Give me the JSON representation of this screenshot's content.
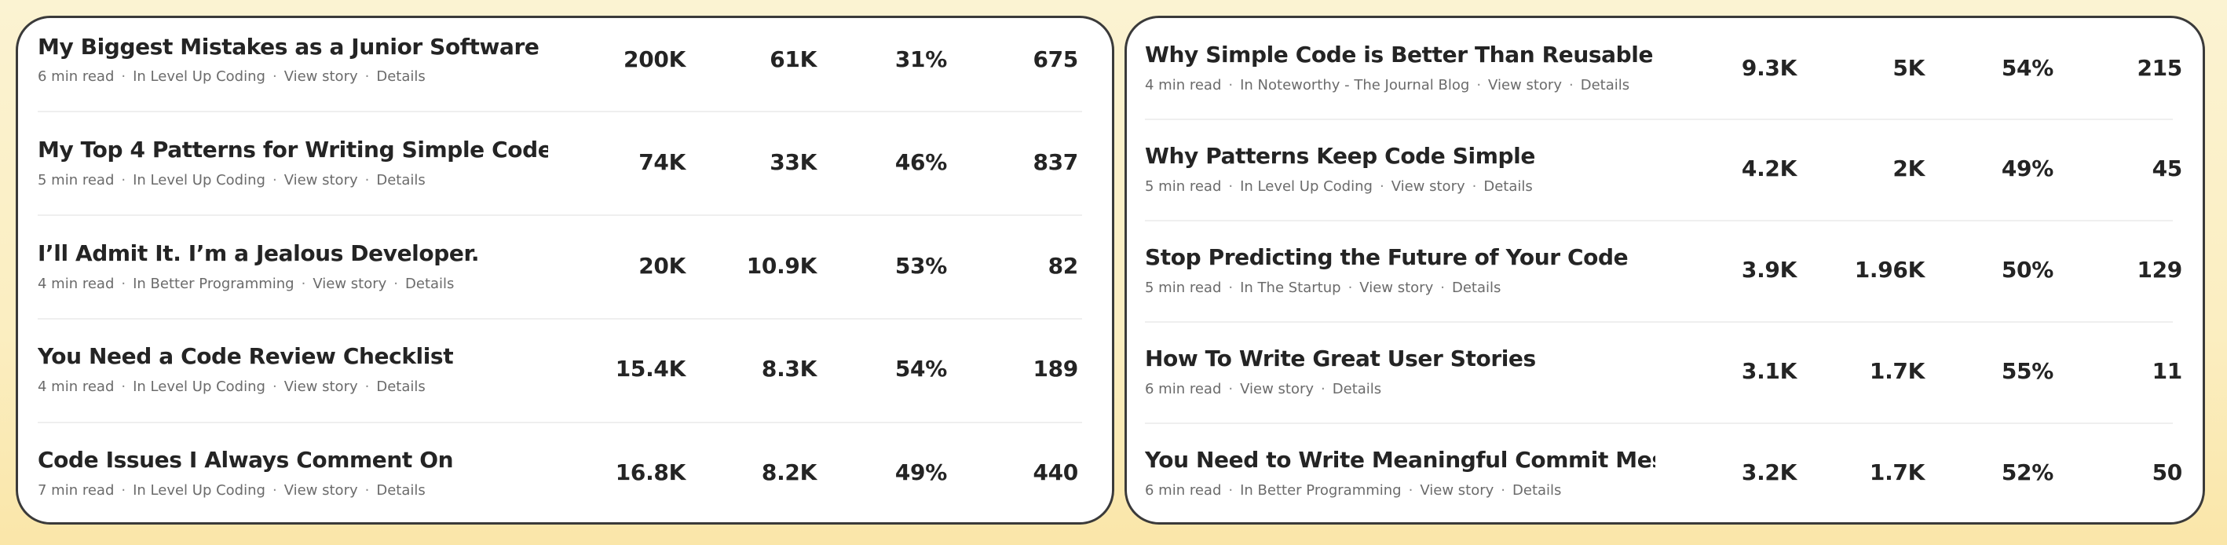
{
  "left": {
    "stories": [
      {
        "title": "My Biggest Mistakes as a Junior Software En...",
        "read_time": "6 min read",
        "publication": "In Level Up Coding",
        "view_story": "View story",
        "details": "Details",
        "views": "200K",
        "reads": "61K",
        "read_ratio": "31%",
        "fans": "675"
      },
      {
        "title": "My Top 4 Patterns for Writing Simple Code",
        "read_time": "5 min read",
        "publication": "In Level Up Coding",
        "view_story": "View story",
        "details": "Details",
        "views": "74K",
        "reads": "33K",
        "read_ratio": "46%",
        "fans": "837"
      },
      {
        "title": "I’ll Admit It. I’m a Jealous Developer.",
        "read_time": "4 min read",
        "publication": "In Better Programming",
        "view_story": "View story",
        "details": "Details",
        "views": "20K",
        "reads": "10.9K",
        "read_ratio": "53%",
        "fans": "82"
      },
      {
        "title": "You Need a Code Review Checklist",
        "read_time": "4 min read",
        "publication": "In Level Up Coding",
        "view_story": "View story",
        "details": "Details",
        "views": "15.4K",
        "reads": "8.3K",
        "read_ratio": "54%",
        "fans": "189"
      },
      {
        "title": "Code Issues I Always Comment On",
        "read_time": "7 min read",
        "publication": "In Level Up Coding",
        "view_story": "View story",
        "details": "Details",
        "views": "16.8K",
        "reads": "8.2K",
        "read_ratio": "49%",
        "fans": "440"
      }
    ]
  },
  "right": {
    "stories": [
      {
        "title": "Why Simple Code is Better Than Reusable C...",
        "read_time": "4 min read",
        "publication": "In Noteworthy - The Journal Blog",
        "view_story": "View story",
        "details": "Details",
        "views": "9.3K",
        "reads": "5K",
        "read_ratio": "54%",
        "fans": "215"
      },
      {
        "title": "Why Patterns Keep Code Simple",
        "read_time": "5 min read",
        "publication": "In Level Up Coding",
        "view_story": "View story",
        "details": "Details",
        "views": "4.2K",
        "reads": "2K",
        "read_ratio": "49%",
        "fans": "45"
      },
      {
        "title": "Stop Predicting the Future of Your Code",
        "read_time": "5 min read",
        "publication": "In The Startup",
        "view_story": "View story",
        "details": "Details",
        "views": "3.9K",
        "reads": "1.96K",
        "read_ratio": "50%",
        "fans": "129"
      },
      {
        "title": "How To Write Great User Stories",
        "read_time": "6 min read",
        "publication": "",
        "view_story": "View story",
        "details": "Details",
        "views": "3.1K",
        "reads": "1.7K",
        "read_ratio": "55%",
        "fans": "11"
      },
      {
        "title": "You Need to Write Meaningful Commit Mes...",
        "read_time": "6 min read",
        "publication": "In Better Programming",
        "view_story": "View story",
        "details": "Details",
        "views": "3.2K",
        "reads": "1.7K",
        "read_ratio": "52%",
        "fans": "50"
      }
    ]
  }
}
